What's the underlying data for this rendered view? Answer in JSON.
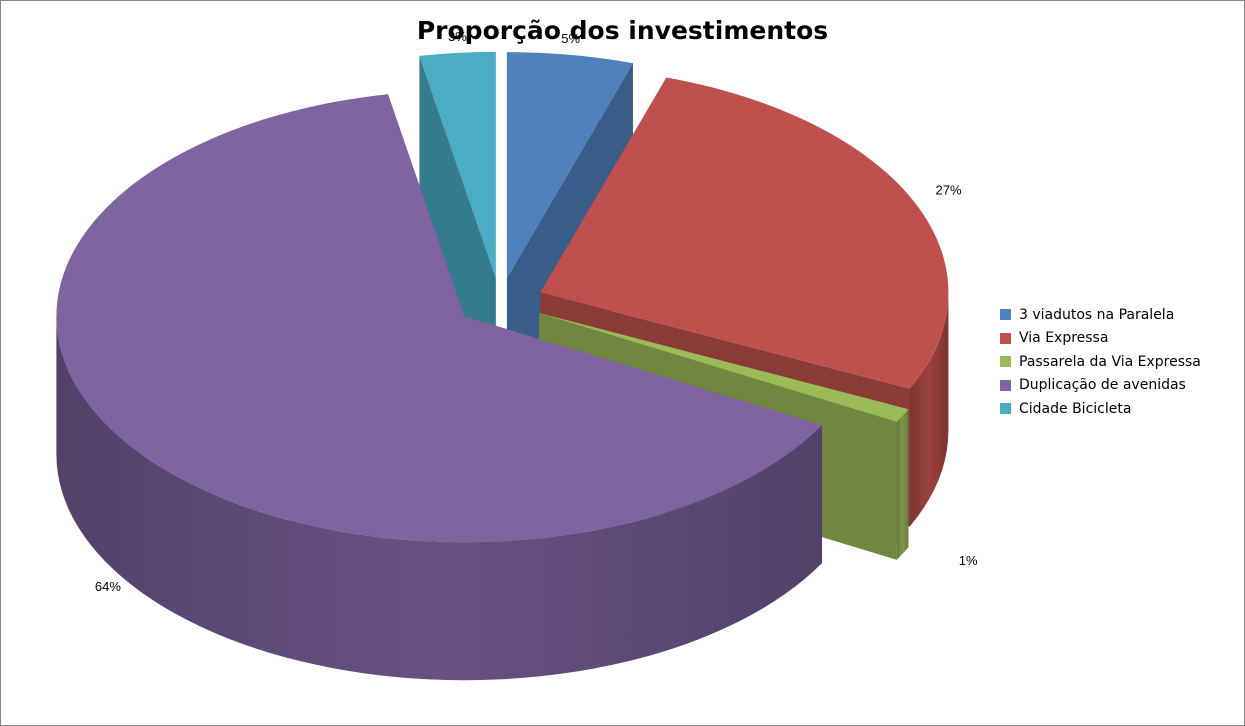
{
  "chart_data": {
    "type": "pie",
    "title": "Proporção dos investimentos",
    "style": "3d-exploded",
    "legend_position": "right",
    "labels": [
      "3 viadutos na Paralela",
      "Via Expressa",
      "Passarela da Via Expressa",
      "Duplicação de avenidas",
      "Cidade Bicicleta"
    ],
    "values": [
      5,
      27,
      1,
      64,
      3
    ],
    "value_labels": [
      "5%",
      "27%",
      "1%",
      "64%",
      "3%"
    ],
    "colors": [
      "#4F81BD",
      "#C0504D",
      "#9BBB59",
      "#8064A2",
      "#4BACC6"
    ]
  }
}
